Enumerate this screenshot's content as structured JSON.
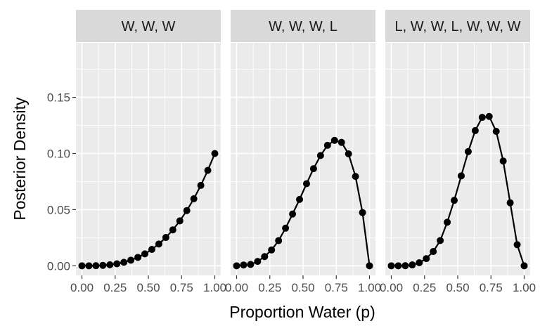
{
  "chart_data": {
    "type": "line",
    "facets": [
      {
        "title": "W, W, W",
        "x": [
          0,
          0.0526,
          0.1053,
          0.1579,
          0.2105,
          0.2632,
          0.3158,
          0.3684,
          0.4211,
          0.4737,
          0.5263,
          0.5789,
          0.6316,
          0.6842,
          0.7368,
          0.7895,
          0.8421,
          0.8947,
          0.9474,
          1
        ],
        "y": [
          0,
          0.0,
          0.0001,
          0.0004,
          0.0009,
          0.0018,
          0.0031,
          0.005,
          0.0075,
          0.0106,
          0.0146,
          0.0194,
          0.0252,
          0.032,
          0.04,
          0.0492,
          0.0597,
          0.0716,
          0.085,
          0.1
        ]
      },
      {
        "title": "W, W, W, L",
        "x": [
          0,
          0.0526,
          0.1053,
          0.1579,
          0.2105,
          0.2632,
          0.3158,
          0.3684,
          0.4211,
          0.4737,
          0.5263,
          0.5789,
          0.6316,
          0.6842,
          0.7368,
          0.7895,
          0.8421,
          0.8947,
          0.9474,
          1
        ],
        "y": [
          0,
          0.0007,
          0.0012,
          0.0039,
          0.0082,
          0.0141,
          0.0224,
          0.0335,
          0.0461,
          0.0591,
          0.0731,
          0.0865,
          0.0982,
          0.1073,
          0.1117,
          0.1099,
          0.0997,
          0.0796,
          0.0474,
          0
        ]
      },
      {
        "title": "L, W, W, L, W, W, W",
        "x": [
          0,
          0.0526,
          0.1053,
          0.1579,
          0.2105,
          0.2632,
          0.3158,
          0.3684,
          0.4211,
          0.4737,
          0.5263,
          0.5789,
          0.6316,
          0.6842,
          0.7368,
          0.7895,
          0.8421,
          0.8947,
          0.9474,
          1
        ],
        "y": [
          0,
          0.0,
          0.0001,
          0.0008,
          0.0027,
          0.0064,
          0.0127,
          0.0225,
          0.0388,
          0.0583,
          0.0801,
          0.1017,
          0.1204,
          0.1322,
          0.133,
          0.1197,
          0.0933,
          0.0561,
          0.0188,
          0
        ]
      }
    ],
    "xlabel": "Proportion Water (p)",
    "ylabel": "Posterior Density",
    "xlim": [
      0,
      1
    ],
    "ylim": [
      0,
      0.19
    ],
    "x_ticks": [
      0,
      0.25,
      0.5,
      0.75,
      1
    ],
    "x_tick_labels": [
      "0.00",
      "0.25",
      "0.50",
      "0.75",
      "1.00"
    ],
    "y_ticks": [
      0,
      0.05,
      0.1,
      0.15
    ],
    "y_tick_labels": [
      "0.00",
      "0.05",
      "0.10",
      "0.15"
    ],
    "grid": true,
    "legend": "none",
    "colors": {
      "panel": "#ebebeb",
      "grid": "#ffffff",
      "strip": "#d9d9d9",
      "series": "#000000"
    }
  }
}
